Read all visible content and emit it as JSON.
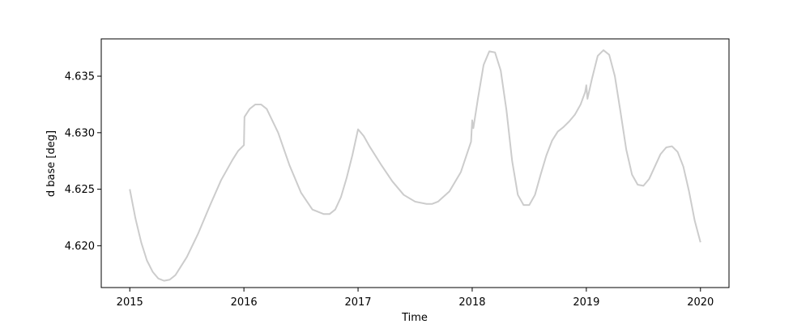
{
  "chart_data": {
    "type": "line",
    "title": "",
    "xlabel": "Time",
    "ylabel": "d base [deg]",
    "xlim": [
      2014.75,
      2020.25
    ],
    "ylim": [
      4.6163,
      4.6383
    ],
    "xticks": [
      2015,
      2016,
      2017,
      2018,
      2019,
      2020
    ],
    "xtick_labels": [
      "2015",
      "2016",
      "2017",
      "2018",
      "2019",
      "2020"
    ],
    "yticks": [
      4.62,
      4.625,
      4.63,
      4.635
    ],
    "ytick_labels": [
      "4.620",
      "4.625",
      "4.630",
      "4.635"
    ],
    "grid": false,
    "series": [
      {
        "name": "d base",
        "color": "#cccccc",
        "x": [
          2015.0,
          2015.05,
          2015.1,
          2015.15,
          2015.2,
          2015.25,
          2015.3,
          2015.35,
          2015.4,
          2015.5,
          2015.6,
          2015.7,
          2015.8,
          2015.9,
          2015.95,
          2015.99,
          2016.0,
          2016.005,
          2016.05,
          2016.1,
          2016.15,
          2016.2,
          2016.3,
          2016.4,
          2016.5,
          2016.6,
          2016.7,
          2016.75,
          2016.8,
          2016.85,
          2016.9,
          2016.95,
          2017.0,
          2017.05,
          2017.1,
          2017.2,
          2017.3,
          2017.4,
          2017.5,
          2017.6,
          2017.65,
          2017.7,
          2017.8,
          2017.9,
          2017.95,
          2017.99,
          2018.0,
          2018.01,
          2018.05,
          2018.1,
          2018.15,
          2018.2,
          2018.25,
          2018.3,
          2018.35,
          2018.4,
          2018.45,
          2018.5,
          2018.55,
          2018.6,
          2018.65,
          2018.7,
          2018.75,
          2018.8,
          2018.85,
          2018.9,
          2018.95,
          2018.99,
          2019.0,
          2019.01,
          2019.05,
          2019.1,
          2019.15,
          2019.2,
          2019.25,
          2019.3,
          2019.35,
          2019.4,
          2019.45,
          2019.5,
          2019.55,
          2019.6,
          2019.65,
          2019.7,
          2019.75,
          2019.8,
          2019.85,
          2019.9,
          2019.95,
          2020.0
        ],
        "y": [
          4.625,
          4.6224,
          4.6203,
          4.6187,
          4.6177,
          4.6171,
          4.6169,
          4.617,
          4.6174,
          4.619,
          4.6211,
          4.6235,
          4.6258,
          4.6276,
          4.6284,
          4.6288,
          4.6289,
          4.6314,
          4.6321,
          4.6325,
          4.6325,
          4.6321,
          4.63,
          4.6271,
          4.6247,
          4.6232,
          4.6228,
          4.6228,
          4.6232,
          4.6243,
          4.626,
          4.628,
          4.6303,
          4.6297,
          4.6288,
          4.6272,
          4.6257,
          4.6245,
          4.6239,
          4.6237,
          4.6237,
          4.6239,
          4.6248,
          4.6265,
          4.628,
          4.6292,
          4.6311,
          4.6304,
          4.633,
          4.636,
          4.6372,
          4.6371,
          4.6355,
          4.632,
          4.6275,
          4.6245,
          4.6236,
          4.6236,
          4.6245,
          4.6263,
          4.628,
          4.6293,
          4.6301,
          4.6305,
          4.631,
          4.6316,
          4.6325,
          4.6336,
          4.6342,
          4.633,
          4.6348,
          4.6368,
          4.6373,
          4.6369,
          4.635,
          4.6318,
          4.6285,
          4.6263,
          4.6254,
          4.6253,
          4.6259,
          4.627,
          4.6281,
          4.6287,
          4.6288,
          4.6283,
          4.627,
          4.6248,
          4.6222,
          4.6203
        ]
      }
    ]
  }
}
